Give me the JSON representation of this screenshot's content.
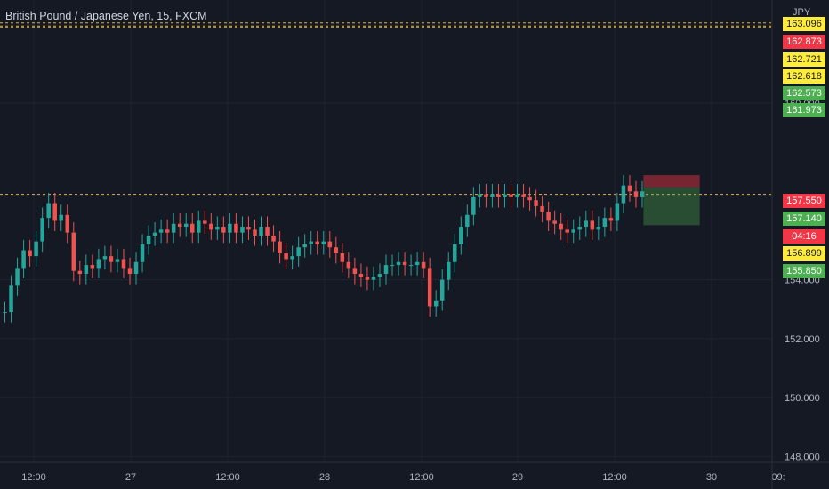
{
  "header": {
    "title": "British Pound / Japanese Yen, 15, FXCM",
    "currency": "JPY"
  },
  "colors": {
    "up": "#26a69a",
    "down": "#ef5350",
    "background": "#151924",
    "grid": "#1f2430"
  },
  "price_labels": [
    {
      "value": "163.096",
      "bg": "#ffeb3b",
      "fg": "#131722"
    },
    {
      "value": "162.873",
      "bg": "#f23645",
      "fg": "#ffffff"
    },
    {
      "value": "162.721",
      "bg": "#ffeb3b",
      "fg": "#131722"
    },
    {
      "value": "162.618",
      "bg": "#ffeb3b",
      "fg": "#131722"
    },
    {
      "value": "162.573",
      "bg": "#4caf50",
      "fg": "#ffffff"
    },
    {
      "value": "161.973",
      "bg": "#4caf50",
      "fg": "#ffffff"
    },
    {
      "value": "157.550",
      "bg": "#f23645",
      "fg": "#ffffff"
    },
    {
      "value": "157.140",
      "bg": "#4caf50",
      "fg": "#ffffff"
    },
    {
      "value": "04:16",
      "bg": "#f23645",
      "fg": "#ffffff"
    },
    {
      "value": "156.899",
      "bg": "#ffeb3b",
      "fg": "#131722"
    },
    {
      "value": "155.850",
      "bg": "#4caf50",
      "fg": "#ffffff"
    }
  ],
  "chart_data": {
    "type": "candlestick",
    "yaxis_ticks": [
      "160.000",
      "154.000",
      "152.000",
      "150.000",
      "148.000"
    ],
    "xaxis_ticks": [
      "12:00",
      "27",
      "12:00",
      "28",
      "12:00",
      "29",
      "12:00",
      "30",
      "09:"
    ],
    "ylim": [
      147.8,
      163.5
    ],
    "horizontal_levels": [
      162.721,
      162.618,
      162.573,
      156.899
    ],
    "position": {
      "stop": 157.55,
      "entry": 157.14,
      "target": 155.85
    },
    "series": [
      {
        "x": 0,
        "y": 152.9
      },
      {
        "x": 3,
        "y": 153.8
      },
      {
        "x": 5,
        "y": 154.4
      },
      {
        "x": 8,
        "y": 155.0
      },
      {
        "x": 10,
        "y": 154.8
      },
      {
        "x": 12,
        "y": 155.3
      },
      {
        "x": 13,
        "y": 156.1
      },
      {
        "x": 14,
        "y": 156.6
      },
      {
        "x": 15,
        "y": 156.0
      },
      {
        "x": 16,
        "y": 156.2
      },
      {
        "x": 17,
        "y": 155.6
      },
      {
        "x": 18,
        "y": 154.3
      },
      {
        "x": 19,
        "y": 154.2
      },
      {
        "x": 20,
        "y": 154.5
      },
      {
        "x": 21,
        "y": 154.4
      },
      {
        "x": 22,
        "y": 154.7
      },
      {
        "x": 23,
        "y": 154.8
      },
      {
        "x": 24,
        "y": 154.6
      },
      {
        "x": 25,
        "y": 154.7
      },
      {
        "x": 26,
        "y": 154.4
      },
      {
        "x": 27,
        "y": 154.2
      },
      {
        "x": 28,
        "y": 154.6
      },
      {
        "x": 29,
        "y": 155.2
      },
      {
        "x": 30,
        "y": 155.5
      },
      {
        "x": 31,
        "y": 155.6
      },
      {
        "x": 32,
        "y": 155.7
      },
      {
        "x": 33,
        "y": 155.6
      },
      {
        "x": 34,
        "y": 155.9
      },
      {
        "x": 35,
        "y": 155.8
      },
      {
        "x": 36,
        "y": 155.9
      },
      {
        "x": 37,
        "y": 155.6
      },
      {
        "x": 38,
        "y": 156.0
      },
      {
        "x": 39,
        "y": 155.9
      },
      {
        "x": 40,
        "y": 155.7
      },
      {
        "x": 41,
        "y": 155.8
      },
      {
        "x": 42,
        "y": 155.6
      },
      {
        "x": 43,
        "y": 155.9
      },
      {
        "x": 44,
        "y": 155.6
      },
      {
        "x": 45,
        "y": 155.8
      },
      {
        "x": 46,
        "y": 155.7
      },
      {
        "x": 47,
        "y": 155.5
      },
      {
        "x": 48,
        "y": 155.8
      },
      {
        "x": 49,
        "y": 155.5
      },
      {
        "x": 50,
        "y": 155.3
      },
      {
        "x": 51,
        "y": 154.9
      },
      {
        "x": 52,
        "y": 154.7
      },
      {
        "x": 53,
        "y": 154.8
      },
      {
        "x": 54,
        "y": 155.1
      },
      {
        "x": 55,
        "y": 155.2
      },
      {
        "x": 56,
        "y": 155.3
      },
      {
        "x": 57,
        "y": 155.2
      },
      {
        "x": 58,
        "y": 155.3
      },
      {
        "x": 59,
        "y": 155.1
      },
      {
        "x": 60,
        "y": 154.9
      },
      {
        "x": 61,
        "y": 154.6
      },
      {
        "x": 62,
        "y": 154.4
      },
      {
        "x": 63,
        "y": 154.2
      },
      {
        "x": 64,
        "y": 154.1
      },
      {
        "x": 65,
        "y": 154.0
      },
      {
        "x": 66,
        "y": 154.1
      },
      {
        "x": 67,
        "y": 154.2
      },
      {
        "x": 68,
        "y": 154.5
      },
      {
        "x": 69,
        "y": 154.5
      },
      {
        "x": 70,
        "y": 154.6
      },
      {
        "x": 71,
        "y": 154.5
      },
      {
        "x": 72,
        "y": 154.5
      },
      {
        "x": 73,
        "y": 154.6
      },
      {
        "x": 74,
        "y": 154.4
      },
      {
        "x": 75,
        "y": 153.1
      },
      {
        "x": 76,
        "y": 153.3
      },
      {
        "x": 77,
        "y": 154.0
      },
      {
        "x": 78,
        "y": 154.6
      },
      {
        "x": 79,
        "y": 155.2
      },
      {
        "x": 80,
        "y": 155.8
      },
      {
        "x": 81,
        "y": 156.2
      },
      {
        "x": 82,
        "y": 156.8
      },
      {
        "x": 83,
        "y": 156.9
      },
      {
        "x": 84,
        "y": 156.8
      },
      {
        "x": 85,
        "y": 156.9
      },
      {
        "x": 86,
        "y": 156.8
      },
      {
        "x": 87,
        "y": 156.9
      },
      {
        "x": 88,
        "y": 156.8
      },
      {
        "x": 89,
        "y": 156.9
      },
      {
        "x": 90,
        "y": 156.8
      },
      {
        "x": 91,
        "y": 156.7
      },
      {
        "x": 92,
        "y": 156.5
      },
      {
        "x": 93,
        "y": 156.3
      },
      {
        "x": 94,
        "y": 156.0
      },
      {
        "x": 95,
        "y": 155.9
      },
      {
        "x": 96,
        "y": 155.7
      },
      {
        "x": 97,
        "y": 155.6
      },
      {
        "x": 98,
        "y": 155.7
      },
      {
        "x": 99,
        "y": 155.8
      },
      {
        "x": 100,
        "y": 156.0
      },
      {
        "x": 101,
        "y": 155.7
      },
      {
        "x": 102,
        "y": 155.8
      },
      {
        "x": 103,
        "y": 156.1
      },
      {
        "x": 104,
        "y": 156.0
      },
      {
        "x": 105,
        "y": 156.6
      },
      {
        "x": 106,
        "y": 157.2
      },
      {
        "x": 107,
        "y": 157.0
      },
      {
        "x": 108,
        "y": 156.8
      },
      {
        "x": 109,
        "y": 157.0
      }
    ],
    "future_bars": 20
  }
}
